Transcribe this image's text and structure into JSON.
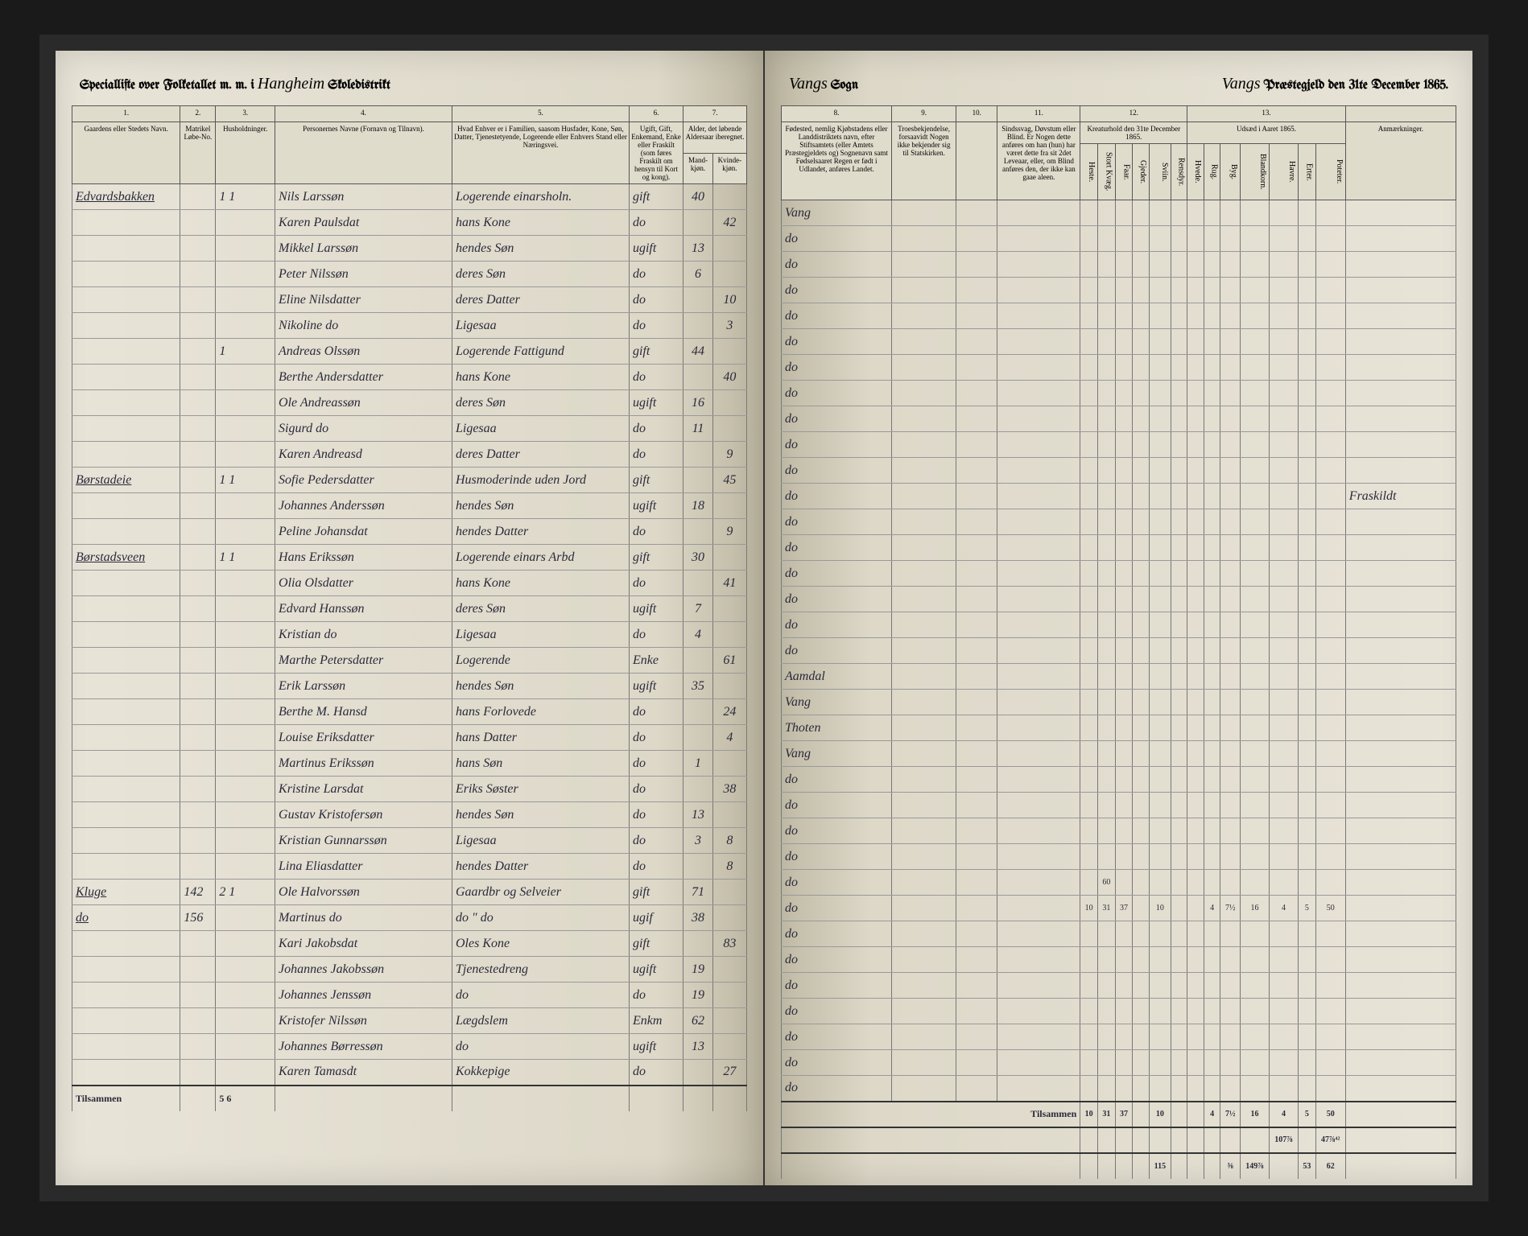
{
  "header": {
    "left_title_prefix": "Speciallifte over Folketallet m. m. i",
    "district_script": "Hangheim",
    "left_title_suffix": "Skoledistrikt",
    "right_sogn_script": "Vangs",
    "right_sogn_label": "Sogn",
    "right_praeste_script": "Vangs",
    "right_date": "Præstegjeld den 31te December 1865."
  },
  "column_numbers": {
    "c1": "1.",
    "c2": "2.",
    "c3": "3.",
    "c4": "4.",
    "c5": "5.",
    "c6": "6.",
    "c7": "7.",
    "c8": "8.",
    "c9": "9.",
    "c10": "10.",
    "c11": "11.",
    "c12": "12.",
    "c13": "13."
  },
  "column_labels": {
    "col1": "Gaardens eller Stedets\nNavn.",
    "col2": "Matrikel Løbe-No.",
    "col3": "Husholdninger.",
    "col4": "Personernes Navne (Fornavn og Tilnavn).",
    "col5": "Hvad Enhver er i Familien, saasom Husfader, Kone, Søn, Datter, Tjenestetyende, Logerende eller Enhvers Stand eller Næringsvei.",
    "col6": "Ugift, Gift, Enkemand, Enke eller Fraskilt (som føres Fraskilt om hensyn til Kort og kong).",
    "col7a_h": "Alder,\ndet løbende Aldersaar iberegnet.",
    "col7a": "Mand-kjøn.",
    "col7b": "Kvinde-kjøn.",
    "col8": "Fødested,\nnemlig Kjøbstadens eller Landdistriktets navn, efter Stiftsamtets (eller Amtets Præstegjeldets og) Sognenavn samt Fødselsaaret Regen er født i Udlandet, anføres Landet.",
    "col9": "Troesbekjendelse, forsaavidt Nogen ikke bekjender sig til Statskirken.",
    "col10": "",
    "col11": "Sindssvag, Døvstum eller Blind. Er Nogen dette anføres om han (hun) har været dette fra sit 2det Leveaar, eller, om Blind anføres den, der ikke kan gaae aleen.",
    "col12_h": "Kreaturhold\nden 31te December 1865.",
    "col13_h": "Udsæd i\nAaret 1865.",
    "col12_sub": [
      "Heste.",
      "Stort Kvæg.",
      "Faar.",
      "Gjeder.",
      "Sviin.",
      "Rensdyr."
    ],
    "col13_sub": [
      "Hvede.",
      "Rug.",
      "Byg.",
      "Blandkorn.",
      "Havre.",
      "Erter.",
      "Poteter."
    ],
    "anm": "Anmærkninger.",
    "sum_label": "Tilsammen"
  },
  "rows": [
    {
      "place": "Edvardsbakken",
      "m": "",
      "h": "1 1",
      "name": "Nils Larssøn",
      "role": "Logerende einarsholn.",
      "civ": "gift",
      "age_m": "40",
      "age_f": "",
      "birth": "Vang",
      "remark": ""
    },
    {
      "place": "",
      "m": "",
      "h": "",
      "name": "Karen Paulsdat",
      "role": "hans Kone",
      "civ": "do",
      "age_m": "",
      "age_f": "42",
      "birth": "do",
      "remark": ""
    },
    {
      "place": "",
      "m": "",
      "h": "",
      "name": "Mikkel Larssøn",
      "role": "hendes Søn",
      "civ": "ugift",
      "age_m": "13",
      "age_f": "",
      "birth": "do",
      "remark": ""
    },
    {
      "place": "",
      "m": "",
      "h": "",
      "name": "Peter Nilssøn",
      "role": "deres Søn",
      "civ": "do",
      "age_m": "6",
      "age_f": "",
      "birth": "do",
      "remark": ""
    },
    {
      "place": "",
      "m": "",
      "h": "",
      "name": "Eline Nilsdatter",
      "role": "deres Datter",
      "civ": "do",
      "age_m": "",
      "age_f": "10",
      "birth": "do",
      "remark": ""
    },
    {
      "place": "",
      "m": "",
      "h": "",
      "name": "Nikoline   do",
      "role": "Ligesaa",
      "civ": "do",
      "age_m": "",
      "age_f": "3",
      "birth": "do",
      "remark": ""
    },
    {
      "place": "",
      "m": "",
      "h": "1",
      "name": "Andreas Olssøn",
      "role": "Logerende Fattigund",
      "civ": "gift",
      "age_m": "44",
      "age_f": "",
      "birth": "do",
      "remark": ""
    },
    {
      "place": "",
      "m": "",
      "h": "",
      "name": "Berthe Andersdatter",
      "role": "hans Kone",
      "civ": "do",
      "age_m": "",
      "age_f": "40",
      "birth": "do",
      "remark": ""
    },
    {
      "place": "",
      "m": "",
      "h": "",
      "name": "Ole Andreassøn",
      "role": "deres Søn",
      "civ": "ugift",
      "age_m": "16",
      "age_f": "",
      "birth": "do",
      "remark": ""
    },
    {
      "place": "",
      "m": "",
      "h": "",
      "name": "Sigurd    do",
      "role": "Ligesaa",
      "civ": "do",
      "age_m": "11",
      "age_f": "",
      "birth": "do",
      "remark": ""
    },
    {
      "place": "",
      "m": "",
      "h": "",
      "name": "Karen Andreasd",
      "role": "deres Datter",
      "civ": "do",
      "age_m": "",
      "age_f": "9",
      "birth": "do",
      "remark": ""
    },
    {
      "place": "Børstadeie",
      "m": "",
      "h": "1 1",
      "name": "Sofie Pedersdatter",
      "role": "Husmoderinde uden Jord",
      "civ": "gift",
      "age_m": "",
      "age_f": "45",
      "birth": "do",
      "remark": "Fraskildt"
    },
    {
      "place": "",
      "m": "",
      "h": "",
      "name": "Johannes Anderssøn",
      "role": "hendes Søn",
      "civ": "ugift",
      "age_m": "18",
      "age_f": "",
      "birth": "do",
      "remark": ""
    },
    {
      "place": "",
      "m": "",
      "h": "",
      "name": "Peline Johansdat",
      "role": "hendes Datter",
      "civ": "do",
      "age_m": "",
      "age_f": "9",
      "birth": "do",
      "remark": ""
    },
    {
      "place": "Børstadsveen",
      "m": "",
      "h": "1 1",
      "name": "Hans Erikssøn",
      "role": "Logerende einars Arbd",
      "civ": "gift",
      "age_m": "30",
      "age_f": "",
      "birth": "do",
      "remark": ""
    },
    {
      "place": "",
      "m": "",
      "h": "",
      "name": "Olia Olsdatter",
      "role": "hans Kone",
      "civ": "do",
      "age_m": "",
      "age_f": "41",
      "birth": "do",
      "remark": ""
    },
    {
      "place": "",
      "m": "",
      "h": "",
      "name": "Edvard Hanssøn",
      "role": "deres Søn",
      "civ": "ugift",
      "age_m": "7",
      "age_f": "",
      "birth": "do",
      "remark": ""
    },
    {
      "place": "",
      "m": "",
      "h": "",
      "name": "Kristian   do",
      "role": "Ligesaa",
      "civ": "do",
      "age_m": "4",
      "age_f": "",
      "birth": "do",
      "remark": ""
    },
    {
      "place": "",
      "m": "",
      "h": "",
      "name": "Marthe Petersdatter",
      "role": "Logerende",
      "civ": "Enke",
      "age_m": "",
      "age_f": "61",
      "birth": "Aamdal",
      "remark": ""
    },
    {
      "place": "",
      "m": "",
      "h": "",
      "name": "Erik Larssøn",
      "role": "hendes Søn",
      "civ": "ugift",
      "age_m": "35",
      "age_f": "",
      "birth": "Vang",
      "remark": ""
    },
    {
      "place": "",
      "m": "",
      "h": "",
      "name": "Berthe M. Hansd",
      "role": "hans Forlovede",
      "civ": "do",
      "age_m": "",
      "age_f": "24",
      "birth": "Thoten",
      "remark": ""
    },
    {
      "place": "",
      "m": "",
      "h": "",
      "name": "Louise Eriksdatter",
      "role": "hans Datter",
      "civ": "do",
      "age_m": "",
      "age_f": "4",
      "birth": "Vang",
      "remark": ""
    },
    {
      "place": "",
      "m": "",
      "h": "",
      "name": "Martinus Erikssøn",
      "role": "hans Søn",
      "civ": "do",
      "age_m": "1",
      "age_f": "",
      "birth": "do",
      "remark": ""
    },
    {
      "place": "",
      "m": "",
      "h": "",
      "name": "Kristine Larsdat",
      "role": "Eriks Søster",
      "civ": "do",
      "age_m": "",
      "age_f": "38",
      "birth": "do",
      "remark": ""
    },
    {
      "place": "",
      "m": "",
      "h": "",
      "name": "Gustav Kristofersøn",
      "role": "hendes Søn",
      "civ": "do",
      "age_m": "13",
      "age_f": "",
      "birth": "do",
      "remark": ""
    },
    {
      "place": "",
      "m": "",
      "h": "",
      "name": "Kristian Gunnarssøn",
      "role": "Ligesaa",
      "civ": "do",
      "age_m": "3",
      "age_f": "8",
      "birth": "do",
      "remark": ""
    },
    {
      "place": "",
      "m": "",
      "h": "",
      "name": "Lina Eliasdatter",
      "role": "hendes Datter",
      "civ": "do",
      "age_m": "",
      "age_f": "8",
      "birth": "do",
      "remark": "",
      "livestock": [
        "",
        "60",
        "",
        "",
        "",
        "",
        "",
        "",
        "",
        "",
        "",
        "",
        ""
      ]
    },
    {
      "place": "Kluge",
      "m": "142",
      "h": "2 1",
      "name": "Ole Halvorssøn",
      "role": "Gaardbr og Selveier",
      "civ": "gift",
      "age_m": "71",
      "age_f": "",
      "birth": "do",
      "remark": "",
      "livestock": [
        "10",
        "31",
        "37",
        "",
        "10",
        "",
        "",
        "4",
        "7½",
        "16",
        "4",
        "5",
        "50"
      ]
    },
    {
      "place": "do",
      "m": "156",
      "h": "",
      "name": "Martinus   do",
      "role": "do  \"  do",
      "civ": "ugif",
      "age_m": "38",
      "age_f": "",
      "birth": "do",
      "remark": ""
    },
    {
      "place": "",
      "m": "",
      "h": "",
      "name": "Kari Jakobsdat",
      "role": "Oles Kone",
      "civ": "gift",
      "age_m": "",
      "age_f": "83",
      "birth": "do",
      "remark": ""
    },
    {
      "place": "",
      "m": "",
      "h": "",
      "name": "Johannes Jakobssøn",
      "role": "Tjenestedreng",
      "civ": "ugift",
      "age_m": "19",
      "age_f": "",
      "birth": "do",
      "remark": ""
    },
    {
      "place": "",
      "m": "",
      "h": "",
      "name": "Johannes Jenssøn",
      "role": "do",
      "civ": "do",
      "age_m": "19",
      "age_f": "",
      "birth": "do",
      "remark": ""
    },
    {
      "place": "",
      "m": "",
      "h": "",
      "name": "Kristofer Nilssøn",
      "role": "Lægdslem",
      "civ": "Enkm",
      "age_m": "62",
      "age_f": "",
      "birth": "do",
      "remark": ""
    },
    {
      "place": "",
      "m": "",
      "h": "",
      "name": "Johannes Børressøn",
      "role": "do",
      "civ": "ugift",
      "age_m": "13",
      "age_f": "",
      "birth": "do",
      "remark": ""
    },
    {
      "place": "",
      "m": "",
      "h": "",
      "name": "Karen Tamasdt",
      "role": "Kokkepige",
      "civ": "do",
      "age_m": "",
      "age_f": "27",
      "birth": "do",
      "remark": ""
    }
  ],
  "sums": {
    "left_h": "5 6",
    "right_livestock": [
      "10",
      "31",
      "37",
      "",
      "10",
      "",
      "",
      "4",
      "7½",
      "16",
      "4",
      "5",
      "50"
    ],
    "right_scribble1": [
      "",
      "",
      "",
      "",
      "",
      "",
      "",
      "",
      "",
      "",
      "107⅞",
      "",
      "47⅞⁴²"
    ],
    "right_scribble2": [
      "",
      "",
      "",
      "",
      "115",
      "",
      "",
      "",
      "⅜",
      "149⅞",
      "",
      "53",
      "62"
    ]
  }
}
